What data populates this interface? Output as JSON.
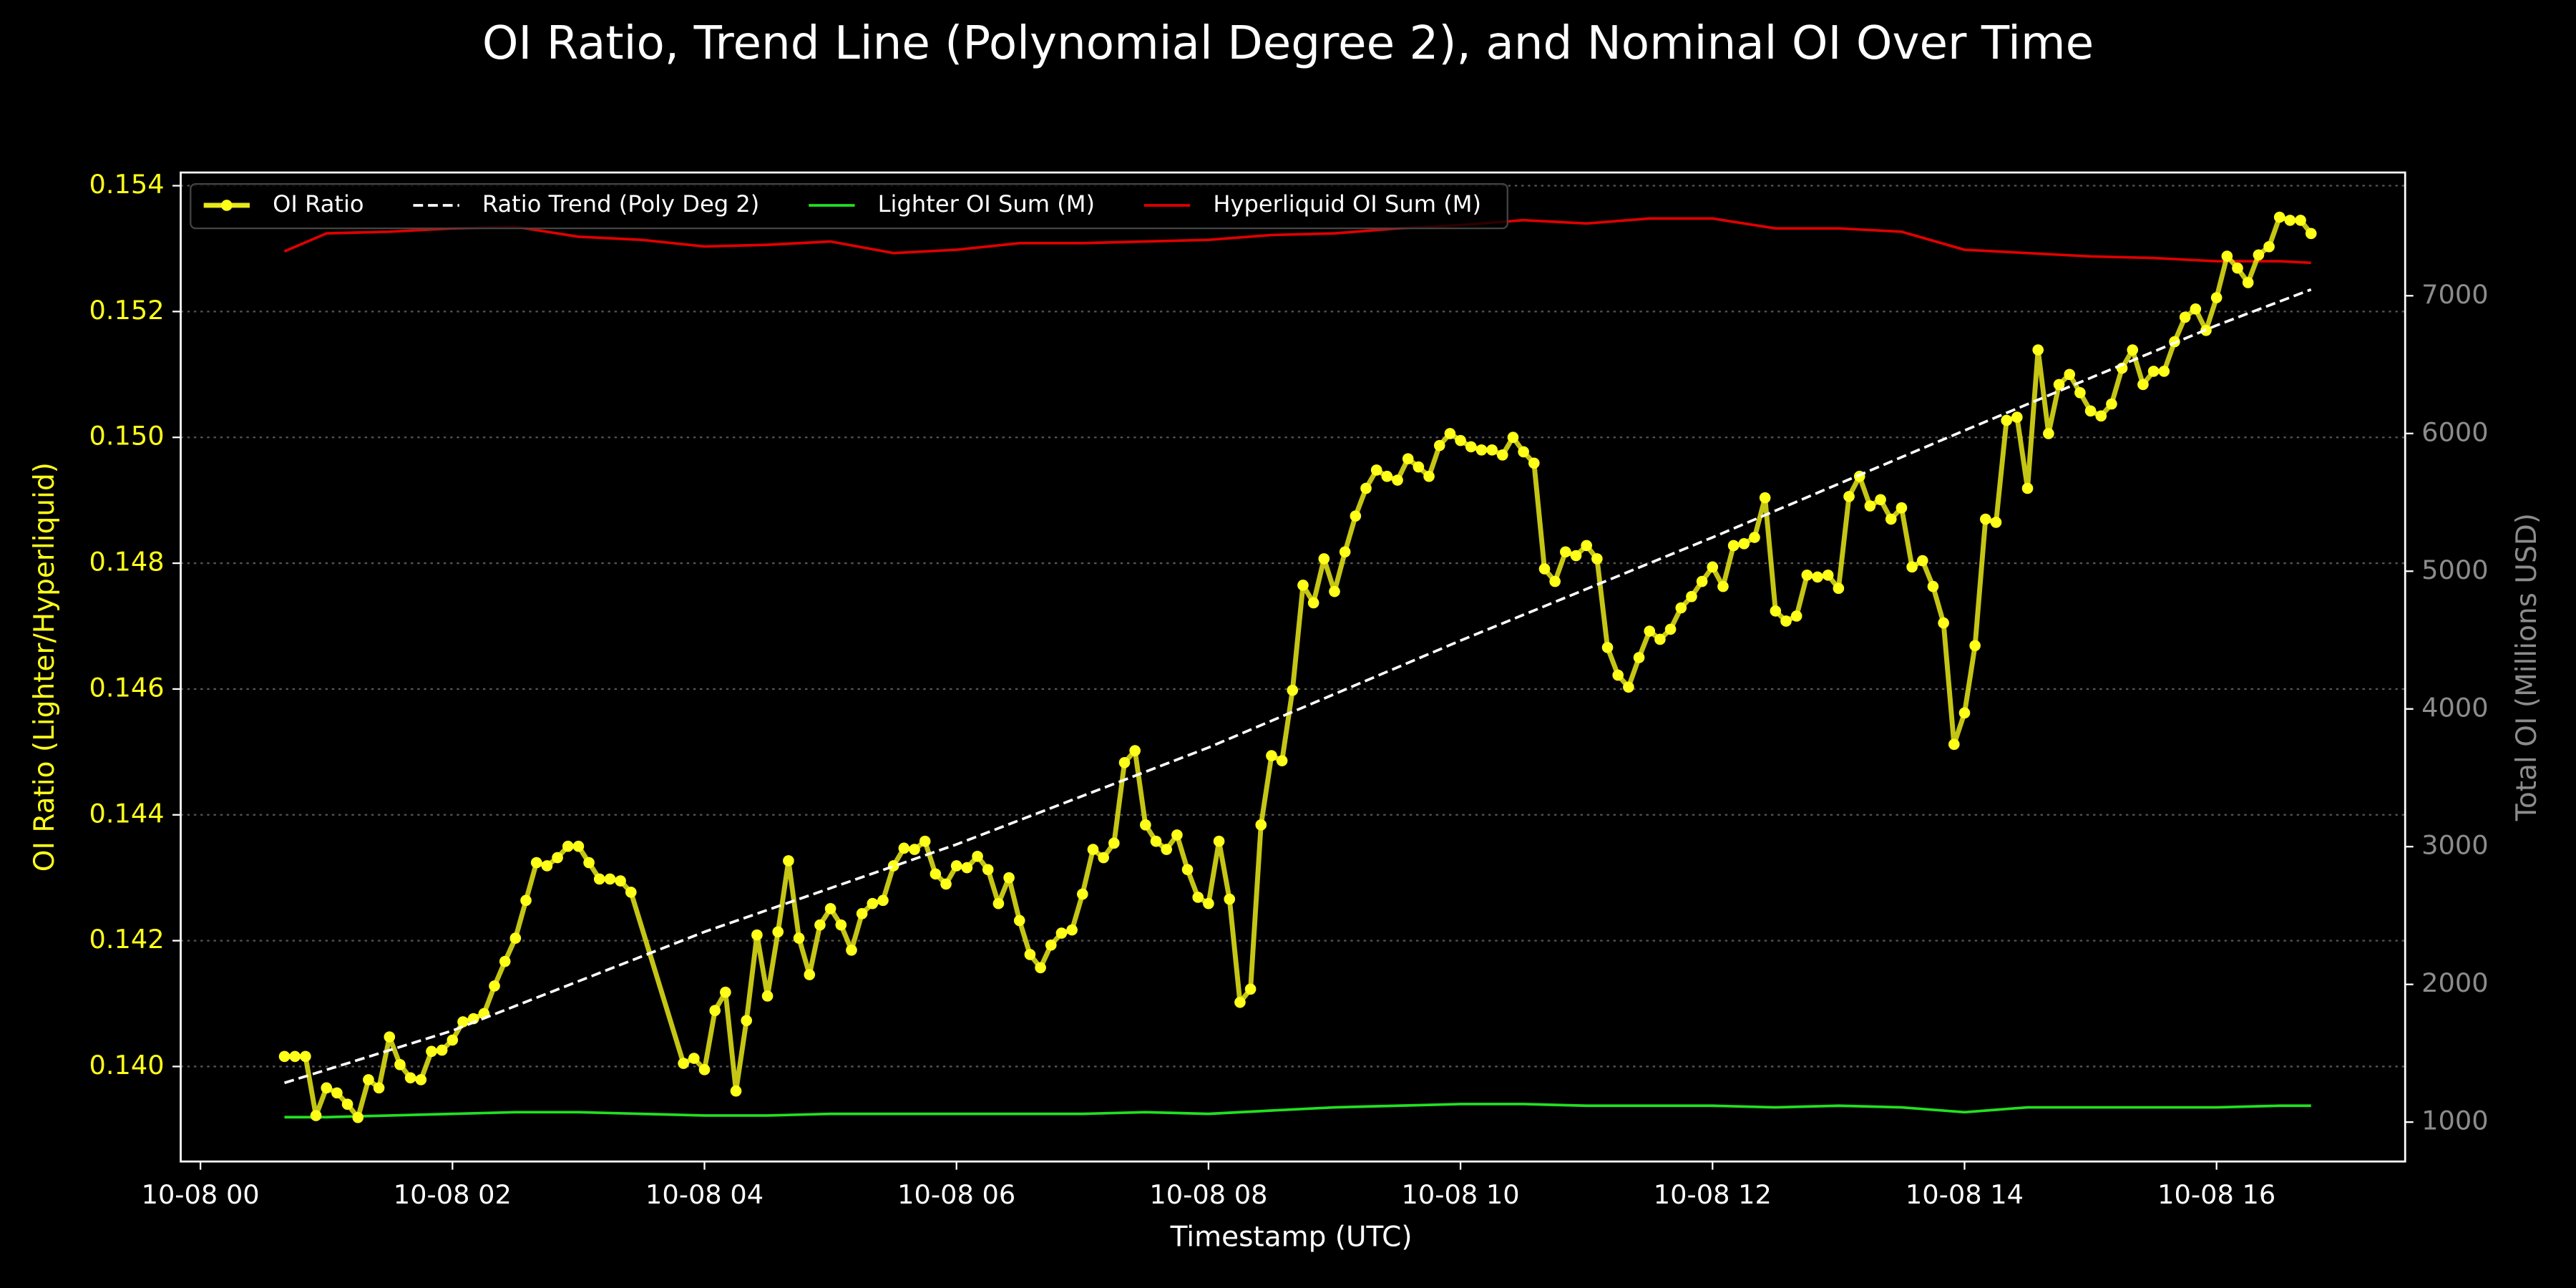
{
  "chart_data": {
    "type": "line",
    "title": "OI Ratio, Trend Line (Polynomial Degree 2), and Nominal OI Over Time",
    "xlabel": "Timestamp (UTC)",
    "ylabel": "OI Ratio (Lighter/Hyperliquid)",
    "y2label": "Total OI (Millions USD)",
    "xlim": [
      -9.4,
      1049.8
    ],
    "xticks": [
      {
        "value": 0,
        "label": "10-08 00"
      },
      {
        "value": 120,
        "label": "10-08 02"
      },
      {
        "value": 240,
        "label": "10-08 04"
      },
      {
        "value": 360,
        "label": "10-08 06"
      },
      {
        "value": 480,
        "label": "10-08 08"
      },
      {
        "value": 600,
        "label": "10-08 10"
      },
      {
        "value": 720,
        "label": "10-08 12"
      },
      {
        "value": 840,
        "label": "10-08 14"
      },
      {
        "value": 960,
        "label": "10-08 16"
      }
    ],
    "ylim": [
      0.13849,
      0.15421
    ],
    "yticks": [
      {
        "value": 0.14,
        "label": "0.140"
      },
      0.142,
      0.144,
      0.146,
      0.148,
      {
        "value": 0.15,
        "label": "0.150"
      },
      0.152,
      0.154
    ],
    "y2lim": [
      714,
      7895
    ],
    "y2ticks": [
      1000,
      2000,
      3000,
      4000,
      5000,
      6000,
      7000
    ],
    "grid": true,
    "legend": "upper left",
    "series": [
      {
        "name": "OI Ratio",
        "color": "#e8e81a",
        "marker_color": "#ffff1a",
        "markers": true,
        "axis": "y",
        "x": [
          40,
          45,
          50,
          55,
          60,
          65,
          70,
          75,
          80,
          85,
          90,
          95,
          100,
          105,
          110,
          115,
          120,
          125,
          130,
          135,
          140,
          145,
          150,
          155,
          160,
          165,
          170,
          175,
          180,
          185,
          190,
          195,
          200,
          205,
          230,
          235,
          240,
          245,
          250,
          255,
          260,
          265,
          270,
          275,
          280,
          285,
          290,
          295,
          300,
          305,
          310,
          315,
          320,
          325,
          330,
          335,
          340,
          345,
          350,
          355,
          360,
          365,
          370,
          375,
          380,
          385,
          390,
          395,
          400,
          405,
          410,
          415,
          420,
          425,
          430,
          435,
          440,
          445,
          450,
          455,
          460,
          465,
          470,
          475,
          480,
          485,
          490,
          495,
          500,
          505,
          510,
          515,
          520,
          525,
          530,
          535,
          540,
          545,
          550,
          555,
          560,
          565,
          570,
          575,
          580,
          585,
          590,
          595,
          600,
          605,
          610,
          615,
          620,
          625,
          630,
          635,
          640,
          645,
          650,
          655,
          660,
          665,
          670,
          675,
          680,
          685,
          690,
          695,
          700,
          705,
          710,
          715,
          720,
          725,
          730,
          735,
          740,
          745,
          750,
          755,
          760,
          765,
          770,
          775,
          780,
          785,
          790,
          795,
          800,
          805,
          810,
          815,
          820,
          825,
          830,
          835,
          840,
          845,
          850,
          855,
          860,
          865,
          870,
          875,
          880,
          885,
          890,
          895,
          900,
          905,
          910,
          915,
          920,
          925,
          930,
          935,
          940,
          945,
          950,
          955,
          960,
          965,
          970,
          975,
          980,
          985,
          990,
          995,
          1000,
          1005
        ],
        "values": [
          0.14016,
          0.14016,
          0.14016,
          0.13922,
          0.13966,
          0.13958,
          0.1394,
          0.13919,
          0.13979,
          0.13966,
          0.14047,
          0.14003,
          0.13982,
          0.13979,
          0.14024,
          0.14026,
          0.14042,
          0.14071,
          0.14076,
          0.14084,
          0.14128,
          0.14167,
          0.14204,
          0.14264,
          0.14324,
          0.14319,
          0.14332,
          0.1435,
          0.1435,
          0.14324,
          0.14298,
          0.14298,
          0.14295,
          0.14277,
          0.14005,
          0.14013,
          0.13995,
          0.14089,
          0.14118,
          0.13961,
          0.14073,
          0.14209,
          0.14112,
          0.14214,
          0.14327,
          0.14204,
          0.14146,
          0.14225,
          0.14251,
          0.14225,
          0.14185,
          0.14243,
          0.14259,
          0.14264,
          0.14319,
          0.14347,
          0.14345,
          0.14358,
          0.14306,
          0.1429,
          0.14319,
          0.14316,
          0.14334,
          0.14313,
          0.14259,
          0.143,
          0.14232,
          0.14178,
          0.14157,
          0.14193,
          0.14212,
          0.14217,
          0.14274,
          0.14345,
          0.14332,
          0.14355,
          0.14483,
          0.14502,
          0.14384,
          0.14358,
          0.14345,
          0.14368,
          0.14313,
          0.14269,
          0.14259,
          0.14358,
          0.14266,
          0.14102,
          0.14123,
          0.14384,
          0.14494,
          0.14486,
          0.14598,
          0.14765,
          0.14737,
          0.14807,
          0.14755,
          0.14818,
          0.14875,
          0.14919,
          0.14948,
          0.14938,
          0.14932,
          0.14966,
          0.14953,
          0.14938,
          0.14987,
          0.15006,
          0.14995,
          0.14985,
          0.1498,
          0.1498,
          0.14972,
          0.15,
          0.14977,
          0.14959,
          0.14791,
          0.14771,
          0.14818,
          0.14812,
          0.14828,
          0.14807,
          0.14666,
          0.14622,
          0.14603,
          0.1465,
          0.14692,
          0.14679,
          0.14695,
          0.14729,
          0.14747,
          0.14771,
          0.14794,
          0.14763,
          0.14828,
          0.14831,
          0.14841,
          0.14904,
          0.14724,
          0.14708,
          0.14716,
          0.14781,
          0.14778,
          0.14781,
          0.1476,
          0.14906,
          0.14938,
          0.14891,
          0.14901,
          0.1487,
          0.14888,
          0.14794,
          0.14804,
          0.14763,
          0.14705,
          0.14512,
          0.14562,
          0.14669,
          0.1487,
          0.14865,
          0.15027,
          0.15032,
          0.14919,
          0.15139,
          0.15006,
          0.15084,
          0.151,
          0.15071,
          0.15042,
          0.15034,
          0.15053,
          0.1511,
          0.15139,
          0.15084,
          0.15105,
          0.15105,
          0.15152,
          0.15191,
          0.15204,
          0.1517,
          0.15222,
          0.15288,
          0.15269,
          0.15246,
          0.1529,
          0.15303,
          0.1535,
          0.15345,
          0.15345,
          0.15324
        ]
      },
      {
        "name": "Ratio Trend (Poly Deg 2)",
        "color": "#ffffff",
        "dashed": true,
        "axis": "y",
        "x": [
          40,
          120,
          240,
          360,
          480,
          600,
          720,
          840,
          960,
          1005
        ],
        "values": [
          0.13974,
          0.14057,
          0.14214,
          0.14353,
          0.14507,
          0.14677,
          0.14841,
          0.15011,
          0.15178,
          0.15235
        ]
      },
      {
        "name": "Lighter OI Sum (M)",
        "color": "#22e022",
        "axis": "y2",
        "x": [
          40,
          60,
          90,
          120,
          150,
          180,
          210,
          240,
          270,
          300,
          330,
          360,
          390,
          420,
          450,
          480,
          510,
          540,
          570,
          600,
          630,
          660,
          690,
          720,
          750,
          780,
          810,
          840,
          870,
          900,
          930,
          960,
          990,
          1005
        ],
        "values": [
          1036,
          1036,
          1048,
          1060,
          1072,
          1072,
          1060,
          1048,
          1048,
          1060,
          1060,
          1060,
          1060,
          1060,
          1072,
          1060,
          1084,
          1107,
          1119,
          1131,
          1131,
          1119,
          1119,
          1119,
          1107,
          1119,
          1107,
          1072,
          1107,
          1107,
          1107,
          1107,
          1119,
          1119
        ]
      },
      {
        "name": "Hyperliquid OI Sum (M)",
        "color": "#e00000",
        "axis": "y2",
        "x": [
          40,
          60,
          90,
          120,
          150,
          180,
          210,
          240,
          270,
          300,
          330,
          360,
          390,
          420,
          450,
          480,
          510,
          540,
          570,
          600,
          630,
          660,
          690,
          720,
          750,
          780,
          810,
          840,
          870,
          900,
          930,
          960,
          990,
          1005
        ],
        "values": [
          7322,
          7453,
          7465,
          7489,
          7501,
          7429,
          7406,
          7358,
          7370,
          7394,
          7310,
          7334,
          7382,
          7382,
          7394,
          7406,
          7441,
          7453,
          7489,
          7513,
          7549,
          7525,
          7561,
          7561,
          7489,
          7489,
          7465,
          7334,
          7310,
          7286,
          7274,
          7251,
          7251,
          7239
        ]
      }
    ]
  }
}
